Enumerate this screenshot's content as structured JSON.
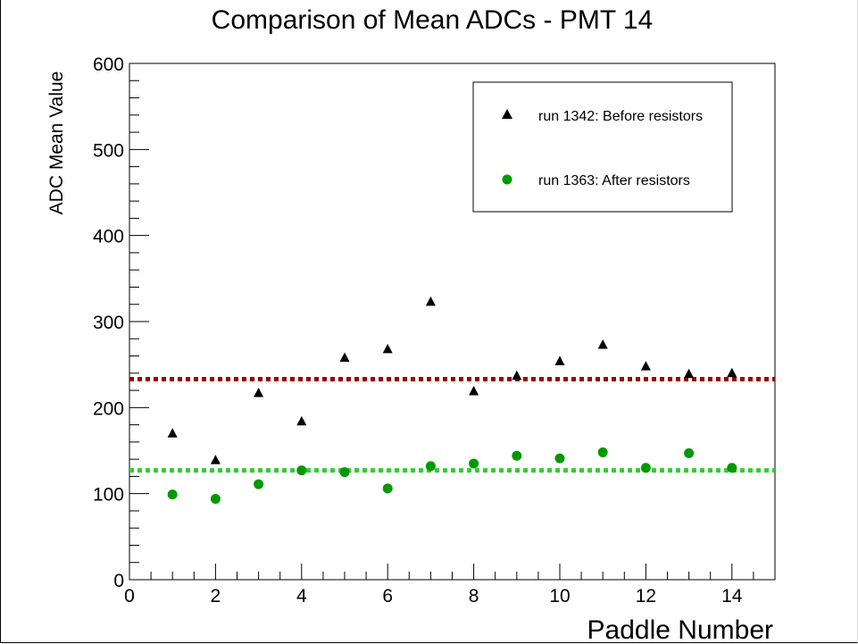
{
  "chart_data": {
    "type": "scatter",
    "title": "Comparison of Mean ADCs - PMT 14",
    "xlabel": "Paddle Number",
    "ylabel": "ADC Mean Value",
    "xlim": [
      0,
      15
    ],
    "ylim": [
      0,
      600
    ],
    "x_ticks": [
      0,
      2,
      4,
      6,
      8,
      10,
      12,
      14
    ],
    "y_ticks": [
      0,
      100,
      200,
      300,
      400,
      500,
      600
    ],
    "grid": false,
    "legend_position": "top-right",
    "series": [
      {
        "name": "run 1342: Before resistors",
        "marker": "triangle",
        "color": "#000000",
        "x": [
          1,
          2,
          3,
          4,
          5,
          6,
          7,
          8,
          9,
          10,
          11,
          12,
          13,
          14
        ],
        "y": [
          170,
          139,
          217,
          184,
          258,
          268,
          323,
          219,
          237,
          254,
          273,
          248,
          239,
          240
        ]
      },
      {
        "name": "run 1363: After resistors",
        "marker": "circle",
        "color": "#009900",
        "x": [
          1,
          2,
          3,
          4,
          5,
          6,
          7,
          8,
          9,
          10,
          11,
          12,
          13,
          14
        ],
        "y": [
          99,
          94,
          111,
          127,
          125,
          106,
          132,
          135,
          144,
          141,
          148,
          130,
          147,
          130
        ]
      }
    ],
    "reference_lines": [
      {
        "y": 233,
        "color": "#990000",
        "style": "dotted"
      },
      {
        "y": 127,
        "color": "#33cc33",
        "style": "dotted"
      }
    ]
  }
}
